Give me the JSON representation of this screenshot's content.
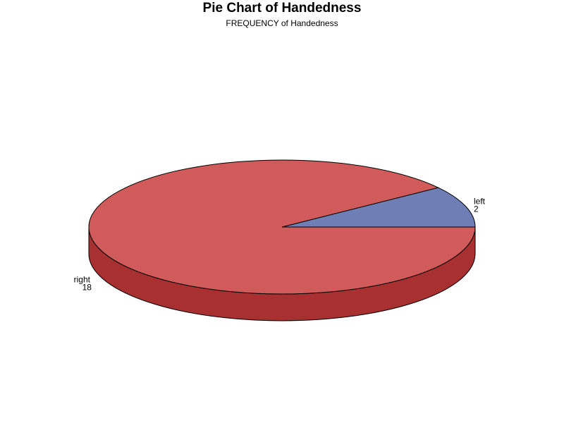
{
  "chart_data": {
    "type": "pie",
    "title": "Pie Chart of Handedness",
    "subtitle": "FREQUENCY of Handedness",
    "categories": [
      "left",
      "right"
    ],
    "values": [
      2,
      18
    ],
    "colors": {
      "left": "#6f7fb6",
      "right": "#d15b5b",
      "right_side": "#a83030",
      "outline": "#000000"
    },
    "legend": false,
    "grid": false
  }
}
